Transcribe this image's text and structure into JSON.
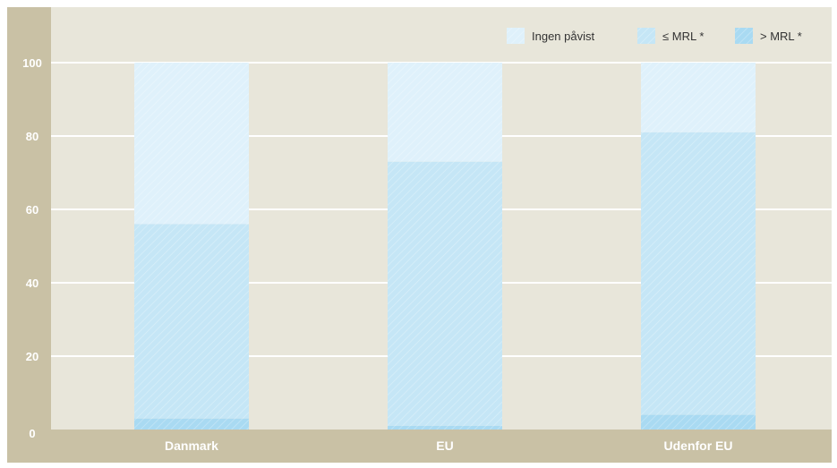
{
  "chart_data": {
    "type": "bar",
    "stacked": true,
    "categories": [
      "Danmark",
      "EU",
      "Udenfor EU"
    ],
    "series": [
      {
        "name": "> MRL *",
        "values": [
          3,
          1,
          4
        ],
        "color": "#a9daf2"
      },
      {
        "name": "≤ MRL *",
        "values": [
          53,
          72,
          77
        ],
        "color": "#c5e6f6"
      },
      {
        "name": "Ingen påvist",
        "values": [
          44,
          27,
          19
        ],
        "color": "#dff1fb"
      }
    ],
    "legend_order": [
      2,
      1,
      0
    ],
    "yticks": [
      0,
      20,
      40,
      60,
      80,
      100
    ],
    "ylim": [
      0,
      100
    ],
    "grid": true,
    "legend_position": "top-right",
    "colors": {
      "plot_background": "#e8e6da",
      "axis_band": "#c9c1a5",
      "axis_text": "#ffffff",
      "grid": "#ffffff"
    }
  }
}
